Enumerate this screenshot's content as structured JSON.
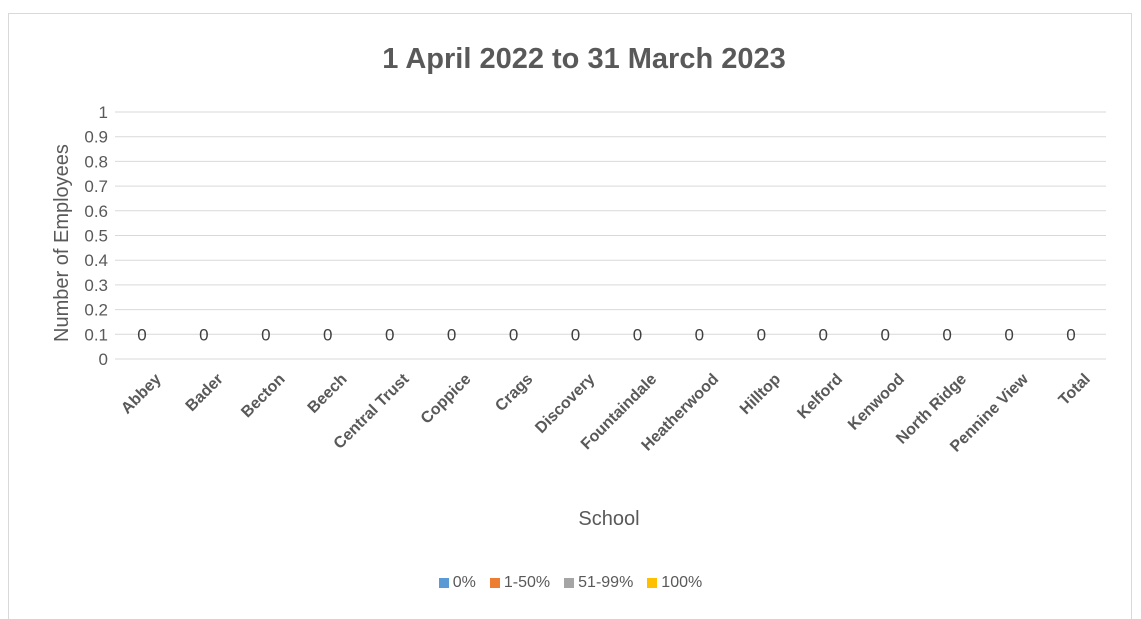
{
  "chart_data": {
    "type": "bar",
    "title": "1 April 2022 to 31 March 2023",
    "xlabel": "School",
    "ylabel": "Number of Employees",
    "categories": [
      "Abbey",
      "Bader",
      "Becton",
      "Beech",
      "Central Trust",
      "Coppice",
      "Crags",
      "Discovery",
      "Fountaindale",
      "Heatherwood",
      "Hilltop",
      "Kelford",
      "Kenwood",
      "North Ridge",
      "Pennine View",
      "Total"
    ],
    "ylim": [
      0,
      1
    ],
    "yticks": [
      "0",
      "0.1",
      "0.2",
      "0.3",
      "0.4",
      "0.5",
      "0.6",
      "0.7",
      "0.8",
      "0.9",
      "1"
    ],
    "grid": true,
    "legend_position": "bottom",
    "series": [
      {
        "name": "0%",
        "color": "#5b9bd5",
        "values": [
          0,
          0,
          0,
          0,
          0,
          0,
          0,
          0,
          0,
          0,
          0,
          0,
          0,
          0,
          0,
          0
        ]
      },
      {
        "name": "1-50%",
        "color": "#ed7d31",
        "values": [
          0,
          0,
          0,
          0,
          0,
          0,
          0,
          0,
          0,
          0,
          0,
          0,
          0,
          0,
          0,
          0
        ]
      },
      {
        "name": "51-99%",
        "color": "#a5a5a5",
        "values": [
          0,
          0,
          0,
          0,
          0,
          0,
          0,
          0,
          0,
          0,
          0,
          0,
          0,
          0,
          0,
          0
        ]
      },
      {
        "name": "100%",
        "color": "#ffc000",
        "values": [
          0,
          0,
          0,
          0,
          0,
          0,
          0,
          0,
          0,
          0,
          0,
          0,
          0,
          0,
          0,
          0
        ]
      }
    ],
    "data_labels": [
      "0",
      "0",
      "0",
      "0",
      "0",
      "0",
      "0",
      "0",
      "0",
      "0",
      "0",
      "0",
      "0",
      "0",
      "0",
      "0"
    ]
  }
}
